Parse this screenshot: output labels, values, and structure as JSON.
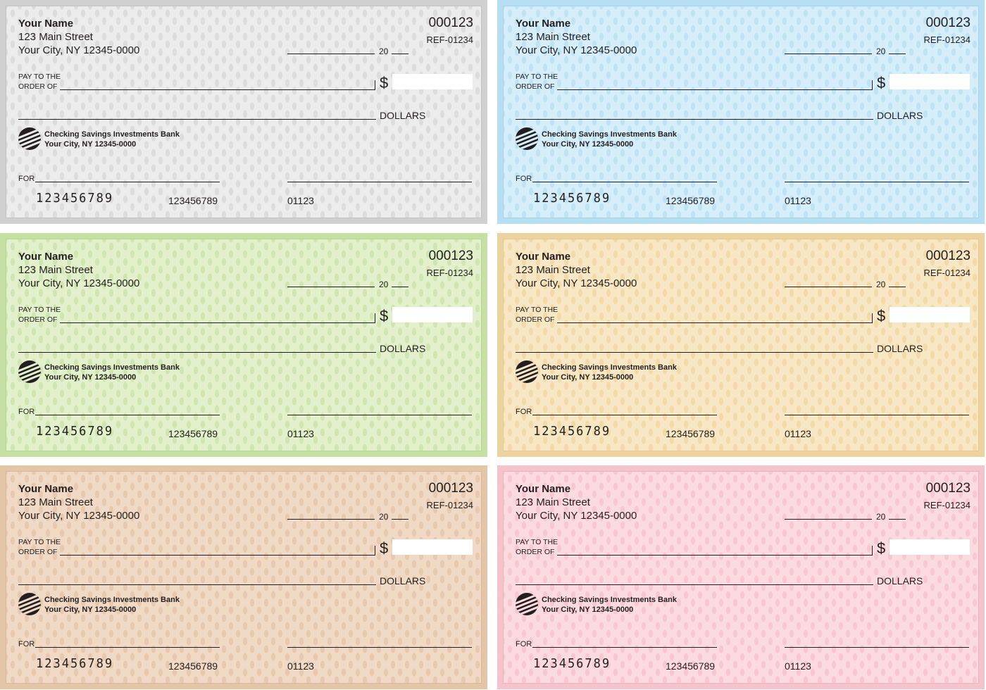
{
  "checks": [
    {
      "color_name": "gray",
      "bg": "#ececec",
      "dot": "#dcdcdc",
      "edge": "#d0d0d0",
      "inner": "#c2c2c2"
    },
    {
      "color_name": "blue",
      "bg": "#d6eefa",
      "dot": "#c0e3f4",
      "edge": "#b8def4",
      "inner": "#a4d3ee"
    },
    {
      "color_name": "green",
      "bg": "#e2f0cc",
      "dot": "#d0e6b0",
      "edge": "#c6e0a4",
      "inner": "#b5d690"
    },
    {
      "color_name": "yellow",
      "bg": "#f8e7c4",
      "dot": "#f1d9a8",
      "edge": "#edd3a0",
      "inner": "#e6c88c"
    },
    {
      "color_name": "tan",
      "bg": "#f0dac6",
      "dot": "#e6c9ae",
      "edge": "#e3c5a8",
      "inner": "#d9b797"
    },
    {
      "color_name": "pink",
      "bg": "#fcdbe0",
      "dot": "#f7c8d0",
      "edge": "#f5c3cc",
      "inner": "#efb2bd"
    }
  ],
  "template": {
    "name": "Your Name",
    "address_line1": "123 Main Street",
    "address_line2": "Your City, NY 12345-0000",
    "check_number": "000123",
    "reference": "REF-01234",
    "date_prefix": "20",
    "pay_label_line1": "PAY TO THE",
    "pay_label_line2": "ORDER OF",
    "dollar_sign": "$",
    "dollars_label": "DOLLARS",
    "bank_name": "Checking Savings Investments Bank",
    "bank_address": "Your City, NY 12345-0000",
    "memo_label": "FOR",
    "micr_routing": "123456789",
    "micr_account": "123456789",
    "micr_check": "01123"
  }
}
